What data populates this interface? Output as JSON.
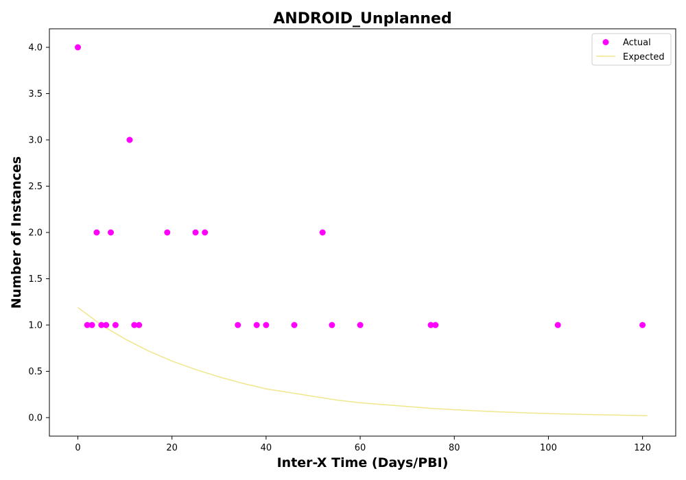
{
  "chart_data": {
    "type": "scatter",
    "title": "ANDROID_Unplanned",
    "xlabel": "Inter-X Time (Days/PBI)",
    "ylabel": "Number of Instances",
    "xlim": [
      -6.05,
      127.05
    ],
    "ylim": [
      -0.2,
      4.2
    ],
    "xticks": [
      0,
      20,
      40,
      60,
      80,
      100,
      120
    ],
    "yticks": [
      0.0,
      0.5,
      1.0,
      1.5,
      2.0,
      2.5,
      3.0,
      3.5,
      4.0
    ],
    "xtick_labels": [
      "0",
      "20",
      "40",
      "60",
      "80",
      "100",
      "120"
    ],
    "ytick_labels": [
      "0.0",
      "0.5",
      "1.0",
      "1.5",
      "2.0",
      "2.5",
      "3.0",
      "3.5",
      "4.0"
    ],
    "grid": false,
    "legend": {
      "position": "top-right",
      "entries": [
        "Actual",
        "Expected"
      ]
    },
    "series": [
      {
        "name": "Actual",
        "kind": "scatter",
        "color": "#ff00ff",
        "x": [
          0,
          2,
          3,
          4,
          5,
          6,
          7,
          8,
          11,
          12,
          13,
          19,
          25,
          27,
          34,
          38,
          40,
          46,
          52,
          54,
          60,
          75,
          76,
          102,
          120
        ],
        "y": [
          4,
          1,
          1,
          2,
          1,
          1,
          2,
          1,
          3,
          1,
          1,
          2,
          2,
          2,
          1,
          1,
          1,
          1,
          2,
          1,
          1,
          1,
          1,
          1,
          1
        ]
      },
      {
        "name": "Expected",
        "kind": "line",
        "color": "#f0e68c",
        "x": [
          0,
          5,
          10,
          15,
          20,
          25,
          30,
          35,
          40,
          45,
          50,
          55,
          60,
          65,
          70,
          75,
          80,
          85,
          90,
          95,
          100,
          105,
          110,
          115,
          121
        ],
        "y": [
          1.19,
          1.0,
          0.85,
          0.72,
          0.61,
          0.52,
          0.44,
          0.37,
          0.31,
          0.27,
          0.23,
          0.19,
          0.16,
          0.14,
          0.12,
          0.1,
          0.085,
          0.072,
          0.061,
          0.052,
          0.044,
          0.037,
          0.031,
          0.027,
          0.02
        ]
      }
    ]
  }
}
